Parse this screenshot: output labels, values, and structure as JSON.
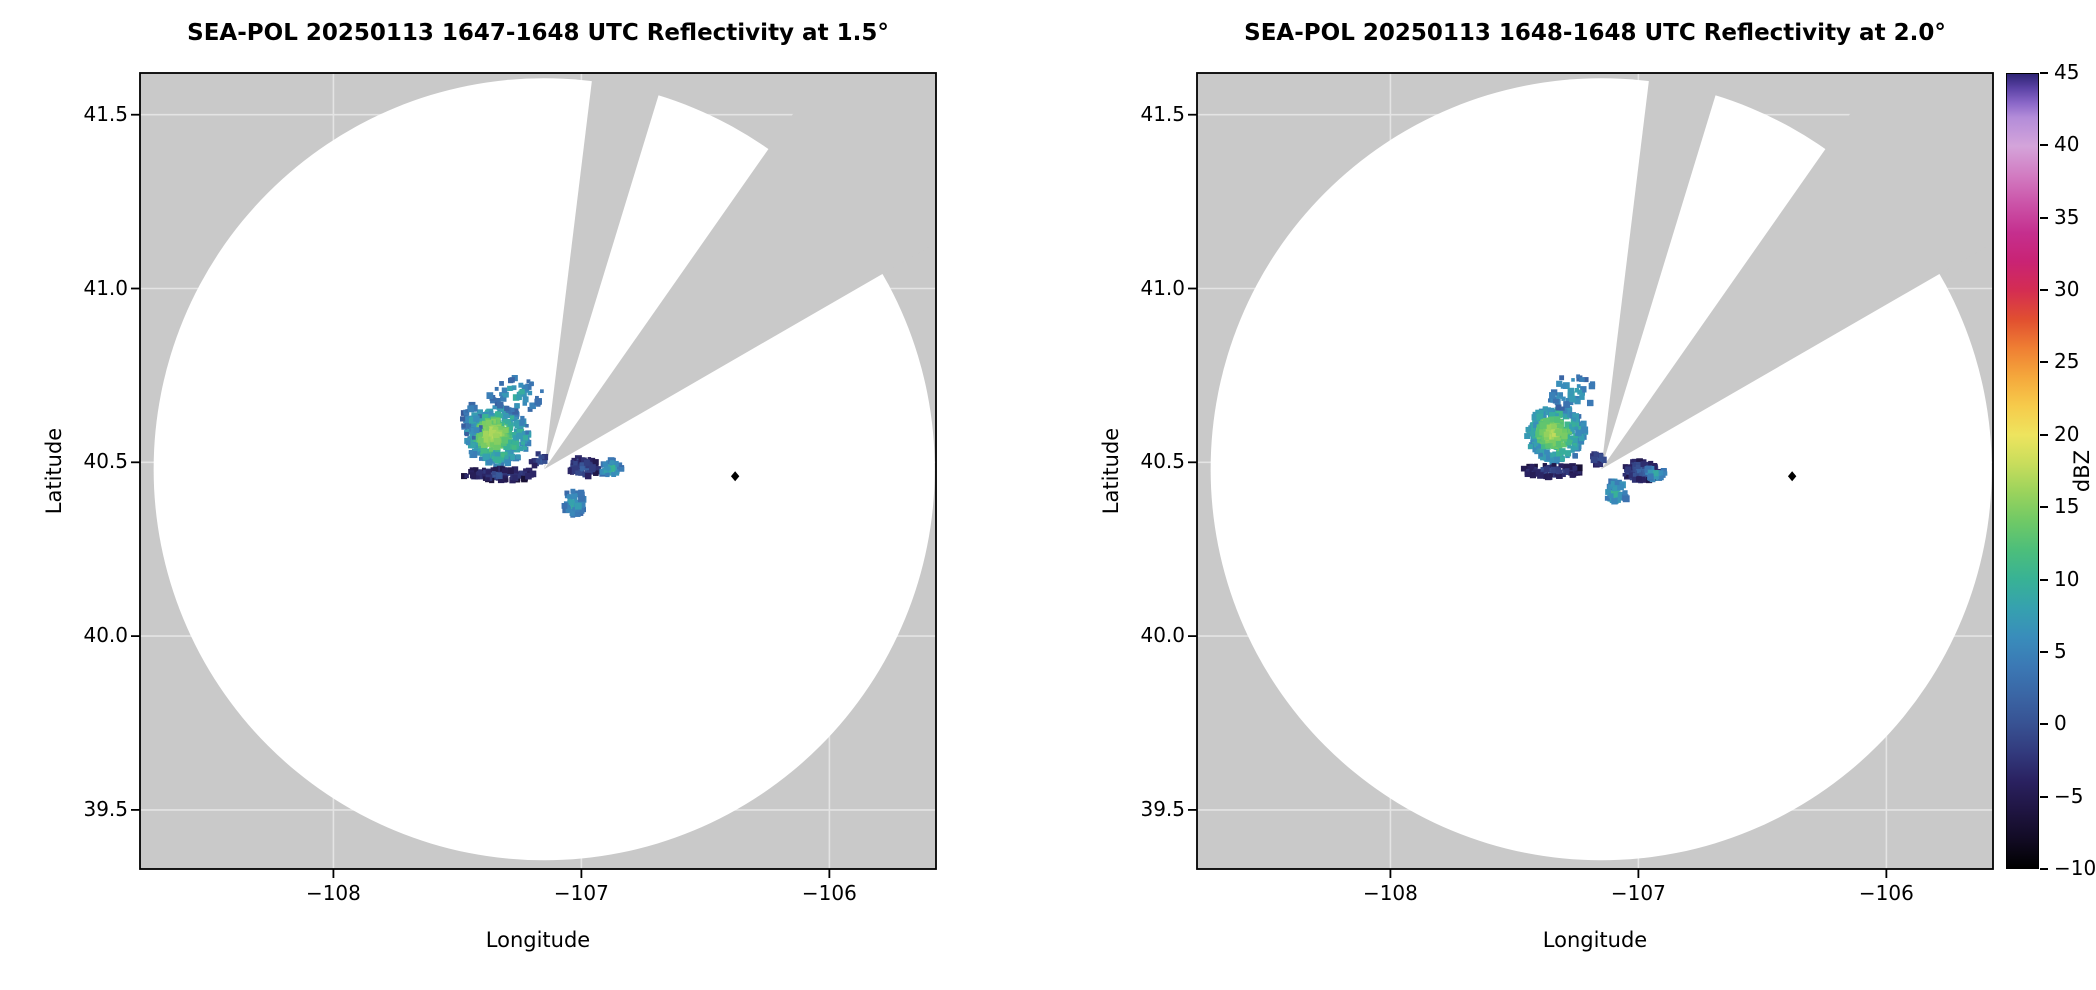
{
  "chart_data": {
    "type": "heatmap",
    "subtype": "radar-ppi-reflectivity",
    "colors": {
      "nodata": "#c9c9c9",
      "scanned": "#ffffff",
      "frame": "#000000",
      "marker": "#000000",
      "grid": "#ffffff"
    },
    "colorbar": {
      "label": "dBZ",
      "min": -10,
      "max": 45,
      "ticks": [
        {
          "v": 45,
          "label": "45"
        },
        {
          "v": 40,
          "label": "40"
        },
        {
          "v": 35,
          "label": "35"
        },
        {
          "v": 30,
          "label": "30"
        },
        {
          "v": 25,
          "label": "25"
        },
        {
          "v": 20,
          "label": "20"
        },
        {
          "v": 15,
          "label": "15"
        },
        {
          "v": 10,
          "label": "10"
        },
        {
          "v": 5,
          "label": "5"
        },
        {
          "v": 0,
          "label": "0"
        },
        {
          "v": -5,
          "label": "−5"
        },
        {
          "v": -10,
          "label": "−10"
        }
      ],
      "stops": [
        [
          -10,
          "#000000"
        ],
        [
          -8,
          "#120b24"
        ],
        [
          -6,
          "#1f1542"
        ],
        [
          -4,
          "#2a2160"
        ],
        [
          -2,
          "#323a7d"
        ],
        [
          0,
          "#385293"
        ],
        [
          2,
          "#3a66a5"
        ],
        [
          4,
          "#3b79b5"
        ],
        [
          6,
          "#398dbb"
        ],
        [
          8,
          "#36a1af"
        ],
        [
          10,
          "#38b295"
        ],
        [
          12,
          "#4cbe7b"
        ],
        [
          14,
          "#6fc966"
        ],
        [
          16,
          "#9ad35c"
        ],
        [
          18,
          "#c8dd5c"
        ],
        [
          20,
          "#eee45e"
        ],
        [
          22,
          "#f6cb4b"
        ],
        [
          24,
          "#f5a83c"
        ],
        [
          26,
          "#ef7f33"
        ],
        [
          28,
          "#e14f30"
        ],
        [
          30,
          "#d42d52"
        ],
        [
          32,
          "#c92374"
        ],
        [
          34,
          "#c52f8e"
        ],
        [
          36,
          "#cb53a8"
        ],
        [
          38,
          "#d27cc2"
        ],
        [
          40,
          "#d4a4da"
        ],
        [
          42,
          "#b38cd9"
        ],
        [
          43,
          "#8a67c8"
        ],
        [
          44,
          "#5c43a6"
        ],
        [
          45,
          "#2e2475"
        ]
      ]
    },
    "panels": [
      {
        "title": "SEA-POL 20250113 1647-1648 UTC Reflectivity at 1.5°",
        "xlabel": "Longitude",
        "ylabel": "Latitude",
        "xlim": [
          -108.78,
          -105.57
        ],
        "ylim": [
          39.33,
          41.62
        ],
        "xticks": [
          {
            "v": -108,
            "label": "−108"
          },
          {
            "v": -107,
            "label": "−107"
          },
          {
            "v": -106,
            "label": "−106"
          }
        ],
        "yticks": [
          {
            "v": 39.5,
            "label": "39.5"
          },
          {
            "v": 40.0,
            "label": "40.0"
          },
          {
            "v": 40.5,
            "label": "40.5"
          },
          {
            "v": 41.0,
            "label": "41.0"
          },
          {
            "v": 41.5,
            "label": "41.5"
          }
        ],
        "radar": {
          "lon": -107.15,
          "lat": 40.48,
          "radius_lon_deg": 1.575,
          "radius_lat_deg": 1.125
        },
        "blocked_sectors_deg": [
          [
            7,
            17
          ],
          [
            35,
            60
          ]
        ],
        "site_marker": {
          "lon": -106.38,
          "lat": 40.46
        },
        "echo_regions": [
          {
            "lon": -107.34,
            "lat": 40.575,
            "rx": 0.13,
            "ry": 0.085,
            "n": 300,
            "vmin": 3,
            "vmax": 18,
            "seed": 11
          },
          {
            "lon": -107.36,
            "lat": 40.58,
            "rx": 0.06,
            "ry": 0.045,
            "n": 120,
            "vmin": 12,
            "vmax": 19,
            "seed": 12
          },
          {
            "lon": -107.26,
            "lat": 40.695,
            "rx": 0.11,
            "ry": 0.05,
            "n": 55,
            "vmin": 1,
            "vmax": 11,
            "seed": 13
          },
          {
            "lon": -107.44,
            "lat": 40.62,
            "rx": 0.04,
            "ry": 0.05,
            "n": 30,
            "vmin": 0,
            "vmax": 10,
            "seed": 14
          },
          {
            "lon": -107.33,
            "lat": 40.465,
            "rx": 0.15,
            "ry": 0.018,
            "n": 90,
            "vmin": -7,
            "vmax": 2,
            "seed": 15
          },
          {
            "lon": -106.99,
            "lat": 40.485,
            "rx": 0.06,
            "ry": 0.028,
            "n": 70,
            "vmin": -6,
            "vmax": 4,
            "seed": 16
          },
          {
            "lon": -106.88,
            "lat": 40.48,
            "rx": 0.045,
            "ry": 0.026,
            "n": 45,
            "vmin": 2,
            "vmax": 12,
            "seed": 17
          },
          {
            "lon": -107.03,
            "lat": 40.385,
            "rx": 0.045,
            "ry": 0.038,
            "n": 45,
            "vmin": 1,
            "vmax": 12,
            "seed": 18
          },
          {
            "lon": -107.17,
            "lat": 40.505,
            "rx": 0.035,
            "ry": 0.02,
            "n": 18,
            "vmin": -5,
            "vmax": 3,
            "seed": 19
          }
        ]
      },
      {
        "title": "SEA-POL 20250113 1648-1648 UTC Reflectivity at 2.0°",
        "xlabel": "Longitude",
        "ylabel": "Latitude",
        "xlim": [
          -108.78,
          -105.57
        ],
        "ylim": [
          39.33,
          41.62
        ],
        "xticks": [
          {
            "v": -108,
            "label": "−108"
          },
          {
            "v": -107,
            "label": "−107"
          },
          {
            "v": -106,
            "label": "−106"
          }
        ],
        "yticks": [
          {
            "v": 39.5,
            "label": "39.5"
          },
          {
            "v": 40.0,
            "label": "40.0"
          },
          {
            "v": 40.5,
            "label": "40.5"
          },
          {
            "v": 41.0,
            "label": "41.0"
          },
          {
            "v": 41.5,
            "label": "41.5"
          }
        ],
        "radar": {
          "lon": -107.15,
          "lat": 40.48,
          "radius_lon_deg": 1.575,
          "radius_lat_deg": 1.125
        },
        "blocked_sectors_deg": [
          [
            7,
            17
          ],
          [
            35,
            60
          ]
        ],
        "site_marker": {
          "lon": -106.38,
          "lat": 40.46
        },
        "echo_regions": [
          {
            "lon": -107.33,
            "lat": 40.58,
            "rx": 0.12,
            "ry": 0.08,
            "n": 280,
            "vmin": 3,
            "vmax": 18,
            "seed": 21
          },
          {
            "lon": -107.35,
            "lat": 40.585,
            "rx": 0.055,
            "ry": 0.042,
            "n": 110,
            "vmin": 12,
            "vmax": 19,
            "seed": 22
          },
          {
            "lon": -107.27,
            "lat": 40.7,
            "rx": 0.1,
            "ry": 0.05,
            "n": 45,
            "vmin": 1,
            "vmax": 11,
            "seed": 23
          },
          {
            "lon": -107.35,
            "lat": 40.475,
            "rx": 0.13,
            "ry": 0.018,
            "n": 80,
            "vmin": -7,
            "vmax": 2,
            "seed": 24
          },
          {
            "lon": -106.99,
            "lat": 40.475,
            "rx": 0.075,
            "ry": 0.03,
            "n": 90,
            "vmin": -6,
            "vmax": 4,
            "seed": 25
          },
          {
            "lon": -106.93,
            "lat": 40.47,
            "rx": 0.04,
            "ry": 0.022,
            "n": 35,
            "vmin": 2,
            "vmax": 11,
            "seed": 26
          },
          {
            "lon": -107.09,
            "lat": 40.41,
            "rx": 0.045,
            "ry": 0.04,
            "n": 55,
            "vmin": 2,
            "vmax": 13,
            "seed": 27
          },
          {
            "lon": -107.16,
            "lat": 40.51,
            "rx": 0.03,
            "ry": 0.02,
            "n": 15,
            "vmin": -5,
            "vmax": 3,
            "seed": 28
          }
        ]
      }
    ]
  }
}
